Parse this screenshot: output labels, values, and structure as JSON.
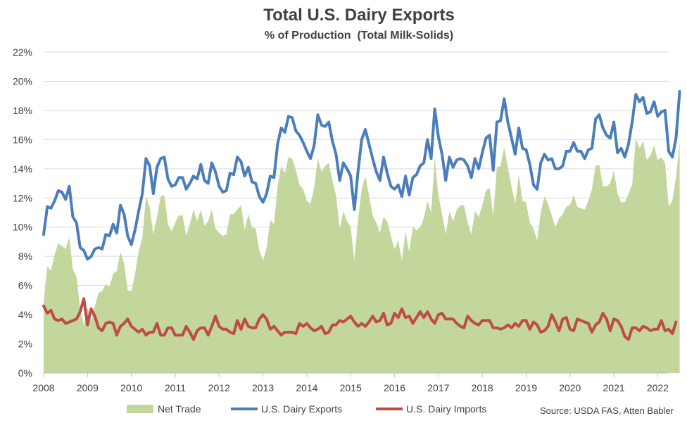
{
  "chart_data": {
    "type": "line",
    "title": "Total U.S. Dairy Exports",
    "subtitle": "% of Production  (Total Milk-Solids)",
    "xlabel": "",
    "ylabel": "",
    "source": "Source: USDA FAS, Atten Babler",
    "x_start": "2008-01",
    "x_ticks": [
      "2008",
      "2009",
      "2010",
      "2011",
      "2012",
      "2013",
      "2014",
      "2015",
      "2016",
      "2017",
      "2018",
      "2019",
      "2020",
      "2021",
      "2022"
    ],
    "y_ticks": [
      "0%",
      "2%",
      "4%",
      "6%",
      "8%",
      "10%",
      "12%",
      "14%",
      "16%",
      "18%",
      "20%",
      "22%"
    ],
    "ylim": [
      0,
      22
    ],
    "grid": true,
    "legend": "bottom",
    "series": [
      {
        "name": "U.S. Dairy Exports",
        "kind": "line",
        "color": "#4a7ebb",
        "values": [
          9.5,
          11.4,
          11.3,
          11.8,
          12.5,
          12.4,
          11.9,
          12.8,
          10.7,
          10.3,
          8.6,
          8.4,
          7.8,
          8.0,
          8.5,
          8.6,
          8.5,
          9.5,
          9.4,
          10.2,
          9.6,
          11.5,
          10.9,
          9.4,
          8.8,
          9.8,
          11.1,
          12.3,
          14.7,
          14.2,
          12.3,
          14.1,
          14.7,
          14.8,
          13.3,
          12.8,
          12.9,
          13.4,
          13.4,
          12.6,
          13.0,
          13.5,
          13.3,
          14.3,
          13.2,
          13.0,
          14.4,
          13.8,
          12.8,
          12.4,
          12.5,
          13.7,
          13.6,
          14.8,
          14.5,
          13.5,
          14.1,
          13.1,
          13.0,
          12.1,
          11.7,
          12.3,
          13.5,
          13.4,
          15.7,
          16.8,
          16.5,
          17.6,
          17.5,
          16.6,
          16.3,
          15.8,
          15.2,
          14.7,
          15.6,
          17.7,
          17.0,
          16.9,
          17.2,
          15.9,
          15.0,
          13.2,
          14.4,
          14.0,
          13.5,
          11.2,
          13.8,
          16.0,
          16.7,
          15.7,
          14.7,
          13.8,
          13.2,
          14.8,
          13.7,
          12.8,
          12.6,
          12.9,
          12.1,
          13.5,
          12.2,
          13.4,
          13.6,
          14.2,
          14.4,
          16.0,
          14.7,
          18.1,
          16.2,
          15.0,
          13.2,
          14.8,
          14.1,
          14.6,
          14.7,
          14.6,
          14.2,
          13.4,
          14.7,
          14.0,
          15.1,
          16.1,
          16.3,
          13.9,
          17.2,
          17.3,
          18.8,
          17.2,
          16.1,
          15.0,
          16.8,
          15.4,
          15.3,
          14.3,
          12.9,
          12.6,
          14.4,
          15.0,
          14.6,
          14.7,
          14.0,
          14.0,
          14.2,
          15.2,
          15.2,
          15.8,
          15.2,
          15.2,
          14.7,
          15.3,
          15.4,
          17.4,
          17.7,
          16.8,
          16.3,
          16.1,
          17.2,
          15.1,
          15.4,
          14.8,
          15.7,
          17.2,
          19.1,
          18.6,
          18.9,
          17.8,
          17.9,
          18.6,
          17.6,
          17.9,
          18.0,
          15.2,
          14.8,
          16.1,
          19.3
        ]
      },
      {
        "name": "U.S. Dairy Imports",
        "kind": "line",
        "color": "#be4b48",
        "values": [
          4.6,
          4.1,
          4.3,
          3.7,
          3.6,
          3.7,
          3.4,
          3.5,
          3.6,
          3.7,
          4.2,
          5.1,
          3.3,
          4.4,
          3.9,
          3.1,
          2.9,
          3.4,
          3.5,
          3.4,
          2.6,
          3.2,
          3.4,
          3.7,
          3.2,
          3.0,
          2.8,
          3.0,
          2.6,
          2.8,
          2.8,
          3.4,
          2.6,
          2.6,
          3.1,
          3.1,
          2.6,
          2.6,
          2.6,
          3.2,
          2.8,
          2.3,
          2.9,
          3.1,
          3.1,
          2.6,
          3.2,
          3.9,
          3.2,
          3.0,
          3.0,
          2.8,
          2.7,
          3.6,
          3.0,
          3.7,
          3.2,
          3.1,
          3.1,
          3.7,
          4.0,
          3.7,
          3.0,
          3.2,
          2.9,
          2.6,
          2.8,
          2.8,
          2.8,
          2.7,
          3.4,
          3.2,
          3.4,
          3.1,
          2.9,
          3.0,
          3.2,
          2.7,
          2.8,
          3.3,
          3.3,
          3.6,
          3.5,
          3.7,
          3.9,
          3.5,
          3.2,
          3.4,
          3.2,
          3.5,
          3.9,
          3.5,
          3.6,
          4.1,
          3.3,
          3.4,
          4.1,
          3.8,
          4.4,
          3.8,
          3.9,
          3.4,
          3.8,
          4.2,
          3.8,
          4.2,
          3.7,
          3.4,
          4.0,
          4.1,
          3.7,
          3.7,
          3.7,
          3.4,
          3.2,
          3.1,
          3.9,
          3.6,
          3.4,
          3.3,
          3.6,
          3.6,
          3.6,
          3.1,
          3.1,
          3.0,
          3.1,
          3.3,
          3.1,
          3.4,
          3.2,
          3.6,
          3.6,
          3.0,
          3.5,
          3.3,
          2.8,
          2.9,
          3.2,
          4.0,
          3.5,
          2.9,
          3.7,
          3.8,
          3.0,
          2.9,
          3.7,
          3.6,
          3.5,
          3.4,
          2.8,
          3.3,
          3.5,
          4.1,
          3.7,
          2.9,
          3.7,
          3.6,
          3.2,
          2.5,
          2.3,
          3.1,
          3.1,
          2.9,
          3.2,
          3.1,
          2.9,
          3.0,
          3.0,
          3.6,
          2.9,
          3.0,
          2.7,
          3.5
        ]
      },
      {
        "name": "Net Trade",
        "kind": "area",
        "color": "#c3d69b",
        "values": [
          4.9,
          7.3,
          7.0,
          8.1,
          8.9,
          8.7,
          8.5,
          9.3,
          7.1,
          6.6,
          4.4,
          3.3,
          4.5,
          3.6,
          4.6,
          5.5,
          5.6,
          6.1,
          5.9,
          6.8,
          7.0,
          8.3,
          7.5,
          5.7,
          5.6,
          6.8,
          8.3,
          9.3,
          12.1,
          11.4,
          9.5,
          10.7,
          12.1,
          12.2,
          10.2,
          9.7,
          10.3,
          10.8,
          10.8,
          9.4,
          10.2,
          11.2,
          10.4,
          11.2,
          10.1,
          10.4,
          11.2,
          9.9,
          9.6,
          9.4,
          9.5,
          10.9,
          10.9,
          11.2,
          11.5,
          9.8,
          10.9,
          10.0,
          9.9,
          8.4,
          7.7,
          8.6,
          10.5,
          10.2,
          12.8,
          14.2,
          13.7,
          14.8,
          14.7,
          13.9,
          12.9,
          12.6,
          11.8,
          11.6,
          12.7,
          14.7,
          13.8,
          14.2,
          14.4,
          13.2,
          12.2,
          9.9,
          11.1,
          10.4,
          10.0,
          7.7,
          10.5,
          12.6,
          13.5,
          12.2,
          10.8,
          10.3,
          9.6,
          10.7,
          10.4,
          9.4,
          8.5,
          9.1,
          7.7,
          9.7,
          8.3,
          10.0,
          9.8,
          10.0,
          10.6,
          11.8,
          11.0,
          14.7,
          12.2,
          10.9,
          9.5,
          11.1,
          10.4,
          11.2,
          11.5,
          11.5,
          10.3,
          9.5,
          11.1,
          10.7,
          11.5,
          12.5,
          12.7,
          10.8,
          14.1,
          14.2,
          15.5,
          14.1,
          12.8,
          11.6,
          13.6,
          11.8,
          11.7,
          10.3,
          9.9,
          9.1,
          11.0,
          12.1,
          11.6,
          10.8,
          10.0,
          10.6,
          10.9,
          11.4,
          11.5,
          12.2,
          11.4,
          11.3,
          11.2,
          11.8,
          12.6,
          14.2,
          14.3,
          12.8,
          12.8,
          13.0,
          13.9,
          12.3,
          11.7,
          11.7,
          12.3,
          12.9,
          16.1,
          15.4,
          15.9,
          14.6,
          14.9,
          15.6,
          14.6,
          14.8,
          14.4,
          11.4,
          11.8,
          13.4,
          15.8
        ]
      }
    ]
  }
}
